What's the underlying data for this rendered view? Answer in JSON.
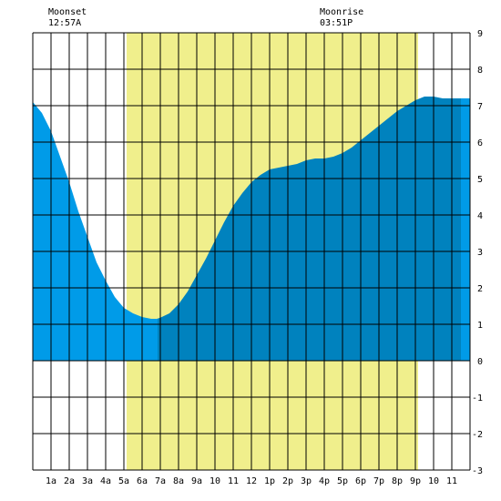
{
  "header": {
    "moonset_label": "Moonset",
    "moonset_time": "12:57A",
    "moonrise_label": "Moonrise",
    "moonrise_time": "03:51P"
  },
  "chart_data": {
    "type": "area",
    "title": "",
    "xlabel": "",
    "ylabel": "",
    "ylim": [
      -3,
      9
    ],
    "xlim": [
      0,
      24
    ],
    "grid": true,
    "x_tick_labels": [
      "1a",
      "2a",
      "3a",
      "4a",
      "5a",
      "6a",
      "7a",
      "8a",
      "9a",
      "10",
      "11",
      "12",
      "1p",
      "2p",
      "3p",
      "4p",
      "5p",
      "6p",
      "7p",
      "8p",
      "9p",
      "10",
      "11"
    ],
    "y_tick_labels": [
      "-3",
      "-2",
      "-1",
      "0",
      "1",
      "2",
      "3",
      "4",
      "5",
      "6",
      "7",
      "8",
      "9"
    ],
    "daylight": {
      "start_hour": 5.15,
      "end_hour": 21.15,
      "color": "#f0ef8c"
    },
    "moonset_hour": 0.95,
    "moonrise_hour": 15.85,
    "colors": {
      "past": "#009be8",
      "future": "#0082be",
      "daylight": "#f0ef8c",
      "grid": "#000000"
    },
    "split_hour": 6.85,
    "series": [
      {
        "x": [
          0,
          0.5,
          1,
          1.5,
          2,
          2.5,
          3,
          3.5,
          4,
          4.5,
          5,
          5.5,
          6,
          6.5,
          6.8,
          7,
          7.5,
          8,
          8.5,
          9,
          9.5,
          10,
          10.5,
          11,
          11.5,
          12,
          12.5,
          13,
          13.5,
          14,
          14.5,
          15,
          15.5,
          16,
          16.5,
          17,
          17.5,
          18,
          18.5,
          19,
          19.5,
          20,
          20.5,
          21,
          21.5,
          22,
          22.5,
          23,
          23.4,
          23.7,
          24
        ],
        "values": [
          7.1,
          6.8,
          6.3,
          5.6,
          4.9,
          4.1,
          3.4,
          2.7,
          2.2,
          1.75,
          1.45,
          1.3,
          1.2,
          1.15,
          1.15,
          1.18,
          1.3,
          1.55,
          1.9,
          2.35,
          2.8,
          3.3,
          3.8,
          4.25,
          4.6,
          4.9,
          5.1,
          5.25,
          5.3,
          5.35,
          5.4,
          5.5,
          5.55,
          5.55,
          5.6,
          5.7,
          5.85,
          6.05,
          6.25,
          6.45,
          6.65,
          6.85,
          7.0,
          7.15,
          7.25,
          7.25,
          7.2,
          7.2,
          7.2,
          7.2,
          7.2
        ]
      }
    ]
  }
}
